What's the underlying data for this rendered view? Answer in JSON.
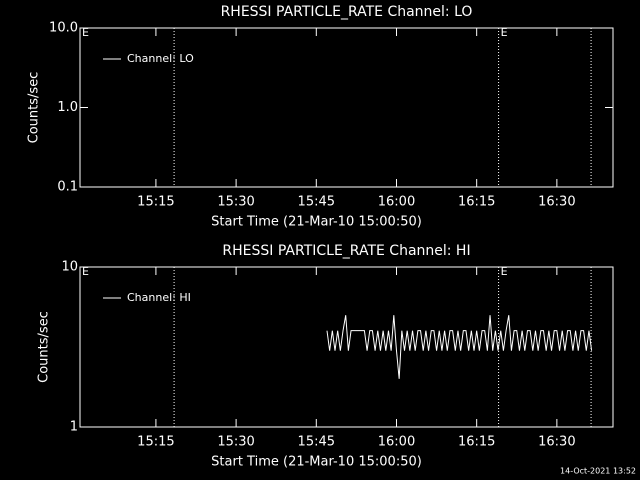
{
  "chart_data": [
    {
      "type": "line",
      "title": "RHESSI PARTICLE_RATE Channel: LO",
      "ylabel": "Counts/sec",
      "xlabel": "Start Time (21-Mar-10 15:00:50)",
      "log_scale": true,
      "legend": "upper left",
      "xlim": [
        0.8,
        100.5
      ],
      "xticks": [
        {
          "value": 15,
          "label": "15:15"
        },
        {
          "value": 30,
          "label": "15:30"
        },
        {
          "value": 45,
          "label": "15:45"
        },
        {
          "value": 60,
          "label": "16:00"
        },
        {
          "value": 75,
          "label": "16:15"
        },
        {
          "value": 90,
          "label": "16:30"
        }
      ],
      "ylim": [
        0.1,
        10
      ],
      "yticks": [
        0.1,
        {
          "value": 1,
          "label": "1.0"
        },
        {
          "value": 10,
          "label": "10.0"
        }
      ],
      "vlines": [
        18.4,
        79.1,
        96.4
      ],
      "annotations": [
        {
          "text": "E",
          "x": 0.8
        },
        {
          "text": "E",
          "x": 79.1
        }
      ],
      "x": [],
      "series": [
        {
          "name": "Channel: LO",
          "color": "#ffffff",
          "values": []
        }
      ]
    },
    {
      "type": "line",
      "title": "RHESSI PARTICLE_RATE Channel: HI",
      "ylabel": "Counts/sec",
      "xlabel": "Start Time (21-Mar-10 15:00:50)",
      "log_scale": true,
      "legend": "upper left",
      "xlim": [
        0.8,
        100.5
      ],
      "xticks": [
        {
          "value": 15,
          "label": "15:15"
        },
        {
          "value": 30,
          "label": "15:30"
        },
        {
          "value": 45,
          "label": "15:45"
        },
        {
          "value": 60,
          "label": "16:00"
        },
        {
          "value": 75,
          "label": "16:15"
        },
        {
          "value": 90,
          "label": "16:30"
        }
      ],
      "ylim": [
        1,
        10
      ],
      "yticks": [
        1,
        10
      ],
      "vlines": [
        18.4,
        79.1,
        96.4
      ],
      "annotations": [
        {
          "text": "E",
          "x": 0.8
        },
        {
          "text": "E",
          "x": 79.1
        }
      ],
      "x": [
        47,
        47.5,
        48,
        48.5,
        49,
        49.5,
        50,
        50.5,
        51,
        51.5,
        52,
        52.5,
        53,
        53.5,
        54,
        54.5,
        55,
        55.5,
        56,
        56.5,
        57,
        57.5,
        58,
        58.5,
        59,
        59.5,
        60,
        60.5,
        61,
        61.5,
        62,
        62.5,
        63,
        63.5,
        64,
        64.5,
        65,
        65.5,
        66,
        66.5,
        67,
        67.5,
        68,
        68.5,
        69,
        69.5,
        70,
        70.5,
        71,
        71.5,
        72,
        72.5,
        73,
        73.5,
        74,
        74.5,
        75,
        75.5,
        76,
        76.5,
        77,
        77.5,
        78,
        78.5,
        79,
        79.5,
        80,
        80.5,
        81,
        81.5,
        82,
        82.5,
        83,
        83.5,
        84,
        84.5,
        85,
        85.5,
        86,
        86.5,
        87,
        87.5,
        88,
        88.5,
        89,
        89.5,
        90,
        90.5,
        91,
        91.5,
        92,
        92.5,
        93,
        93.5,
        94,
        94.5,
        95,
        95.5,
        96,
        96.5
      ],
      "series": [
        {
          "name": "Channel: HI",
          "color": "#ffffff",
          "values": [
            4,
            3,
            4,
            3,
            4,
            3,
            4,
            5,
            3,
            4,
            4,
            4,
            4,
            4,
            4,
            3,
            4,
            4,
            3,
            4,
            3,
            4,
            3,
            4,
            3,
            5,
            3,
            2,
            4,
            3,
            4,
            3,
            4,
            3,
            4,
            4,
            3,
            4,
            3,
            4,
            4,
            3,
            4,
            3,
            4,
            3,
            4,
            4,
            3,
            4,
            3,
            4,
            4,
            3,
            4,
            3,
            4,
            3,
            4,
            4,
            3,
            5,
            3,
            4,
            3,
            4,
            3,
            4,
            5,
            3,
            4,
            4,
            3,
            4,
            3,
            4,
            4,
            3,
            4,
            3,
            4,
            4,
            3,
            4,
            3,
            4,
            4,
            3,
            4,
            3,
            4,
            4,
            3,
            4,
            3,
            4,
            4,
            3,
            4,
            3
          ]
        }
      ]
    }
  ],
  "footer": "14-Oct-2021 13:52"
}
